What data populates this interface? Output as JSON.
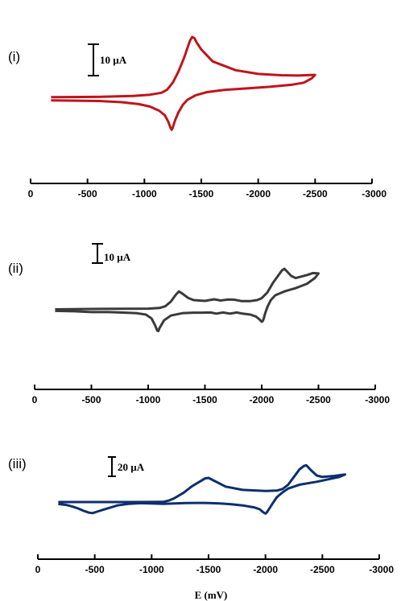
{
  "xlabel": "E (mV)",
  "chart_data": [
    {
      "type": "line",
      "panel_label": "(i)",
      "scale_bar_label": "10 µA",
      "color": "#c0141c",
      "xlim": [
        0,
        -3000
      ],
      "xticks": [
        0,
        -500,
        -1000,
        -1500,
        -2000,
        -2500,
        -3000
      ],
      "tick_labels": [
        "0",
        "-500",
        "-1000",
        "-1500",
        "-2000",
        "-2500",
        "-3000"
      ],
      "series": [
        {
          "values_note": "",
          "x": [
            -180,
            -600,
            -900,
            -1050,
            -1150,
            -1200,
            -1250,
            -1300,
            -1350,
            -1400,
            -1420,
            -1440,
            -1460,
            -1500,
            -1600,
            -1800,
            -2000,
            -2200,
            -2350,
            -2420,
            -2470,
            -2500,
            -2470,
            -2400,
            -2300,
            -2100,
            -1900,
            -1700,
            -1550,
            -1450,
            -1380,
            -1340,
            -1300,
            -1270,
            -1250,
            -1240,
            -1230,
            -1210,
            -1180,
            -1130,
            -1050,
            -950,
            -800,
            -600,
            -180
          ],
          "y": [
            -0.2,
            -0.1,
            0.2,
            0.6,
            1.2,
            2.2,
            4.5,
            8.0,
            12.5,
            17.8,
            19.0,
            18.6,
            17.2,
            15.0,
            11.2,
            8.4,
            7.2,
            6.8,
            6.7,
            6.8,
            6.9,
            6.9,
            5.8,
            4.4,
            3.8,
            3.1,
            2.6,
            2.1,
            1.4,
            0.4,
            -1.0,
            -2.5,
            -5.0,
            -7.5,
            -9.8,
            -10.6,
            -10.0,
            -8.0,
            -6.0,
            -4.5,
            -3.2,
            -2.4,
            -1.8,
            -1.4,
            -1.2
          ]
        }
      ]
    },
    {
      "type": "line",
      "panel_label": "(ii)",
      "scale_bar_label": "10 µA",
      "color": "#3a3a3a",
      "xlim": [
        0,
        -3000
      ],
      "xticks": [
        0,
        -500,
        -1000,
        -1500,
        -2000,
        -2500,
        -3000
      ],
      "tick_labels": [
        "0",
        "-500",
        "-1000",
        "-1500",
        "-2000",
        "-2500",
        "-3000"
      ],
      "series": [
        {
          "x": [
            -180,
            -500,
            -800,
            -1000,
            -1100,
            -1150,
            -1200,
            -1240,
            -1270,
            -1300,
            -1350,
            -1400,
            -1500,
            -1580,
            -1640,
            -1700,
            -1760,
            -1820,
            -1900,
            -1960,
            -2000,
            -2050,
            -2100,
            -2150,
            -2180,
            -2200,
            -2220,
            -2260,
            -2300,
            -2350,
            -2400,
            -2450,
            -2500,
            -2470,
            -2400,
            -2300,
            -2200,
            -2120,
            -2080,
            -2050,
            -2030,
            -2020,
            -2010,
            -2000,
            -1980,
            -1950,
            -1900,
            -1830,
            -1780,
            -1720,
            -1660,
            -1600,
            -1550,
            -1480,
            -1400,
            -1300,
            -1200,
            -1140,
            -1100,
            -1090,
            -1080,
            -1060,
            -1030,
            -980,
            -900,
            -800,
            -650,
            -500,
            -350,
            -180
          ],
          "y": [
            0.2,
            0.4,
            0.5,
            0.6,
            0.9,
            1.8,
            4.2,
            7.5,
            9.5,
            8.4,
            6.2,
            5.0,
            4.6,
            5.4,
            4.8,
            5.3,
            5.2,
            4.5,
            4.5,
            5.0,
            6.0,
            9.0,
            14.0,
            18.0,
            20.5,
            21.2,
            20.0,
            17.5,
            16.4,
            17.2,
            18.0,
            19.0,
            18.8,
            16.5,
            13.5,
            11.2,
            9.5,
            7.5,
            5.0,
            1.5,
            -2.0,
            -4.2,
            -5.8,
            -6.2,
            -5.0,
            -3.5,
            -2.5,
            -2.0,
            -1.4,
            -2.0,
            -1.4,
            -2.0,
            -1.4,
            -1.5,
            -1.5,
            -1.8,
            -3.0,
            -5.5,
            -9.5,
            -11.0,
            -10.8,
            -8.0,
            -4.5,
            -2.5,
            -1.8,
            -1.5,
            -1.2,
            -1.2,
            -0.8,
            -0.6
          ]
        }
      ]
    },
    {
      "type": "line",
      "panel_label": "(iii)",
      "scale_bar_label": "20 µA",
      "color": "#0d2f6e",
      "xlim": [
        0,
        -3000
      ],
      "xticks": [
        0,
        -500,
        -1000,
        -1500,
        -2000,
        -2500,
        -3000
      ],
      "tick_labels": [
        "0",
        "-500",
        "-1000",
        "-1500",
        "-2000",
        "-2500",
        "-3000"
      ],
      "series": [
        {
          "x": [
            -180,
            -500,
            -800,
            -1000,
            -1100,
            -1150,
            -1200,
            -1280,
            -1350,
            -1420,
            -1470,
            -1500,
            -1550,
            -1650,
            -1800,
            -2000,
            -2100,
            -2150,
            -2200,
            -2250,
            -2300,
            -2340,
            -2360,
            -2400,
            -2450,
            -2500,
            -2600,
            -2700,
            -2650,
            -2550,
            -2450,
            -2300,
            -2200,
            -2150,
            -2100,
            -2060,
            -2030,
            -2010,
            -2000,
            -1980,
            -1950,
            -1900,
            -1800,
            -1700,
            -1600,
            -1500,
            -1400,
            -1300,
            -1200,
            -1100,
            -1000,
            -900,
            -800,
            -700,
            -600,
            -520,
            -480,
            -450,
            -400,
            -350,
            -300,
            -250,
            -180
          ],
          "y": [
            0.0,
            0.0,
            0.0,
            0.1,
            0.2,
            1.5,
            4.0,
            9.5,
            16.0,
            21.0,
            24.5,
            25.0,
            22.0,
            16.0,
            12.6,
            11.4,
            11.8,
            13.5,
            18.0,
            26.0,
            34.0,
            37.5,
            38.0,
            33.0,
            27.5,
            26.0,
            27.0,
            28.5,
            26.0,
            23.5,
            21.0,
            18.0,
            14.0,
            10.0,
            5.0,
            -2.0,
            -7.5,
            -11.0,
            -12.0,
            -10.5,
            -7.5,
            -5.5,
            -3.5,
            -2.3,
            -1.5,
            -1.0,
            -0.9,
            -1.1,
            -1.5,
            -1.8,
            -1.5,
            -1.2,
            -1.8,
            -3.5,
            -7.0,
            -10.0,
            -11.5,
            -11.0,
            -9.0,
            -6.5,
            -4.5,
            -3.0,
            -2.0
          ]
        }
      ]
    }
  ]
}
